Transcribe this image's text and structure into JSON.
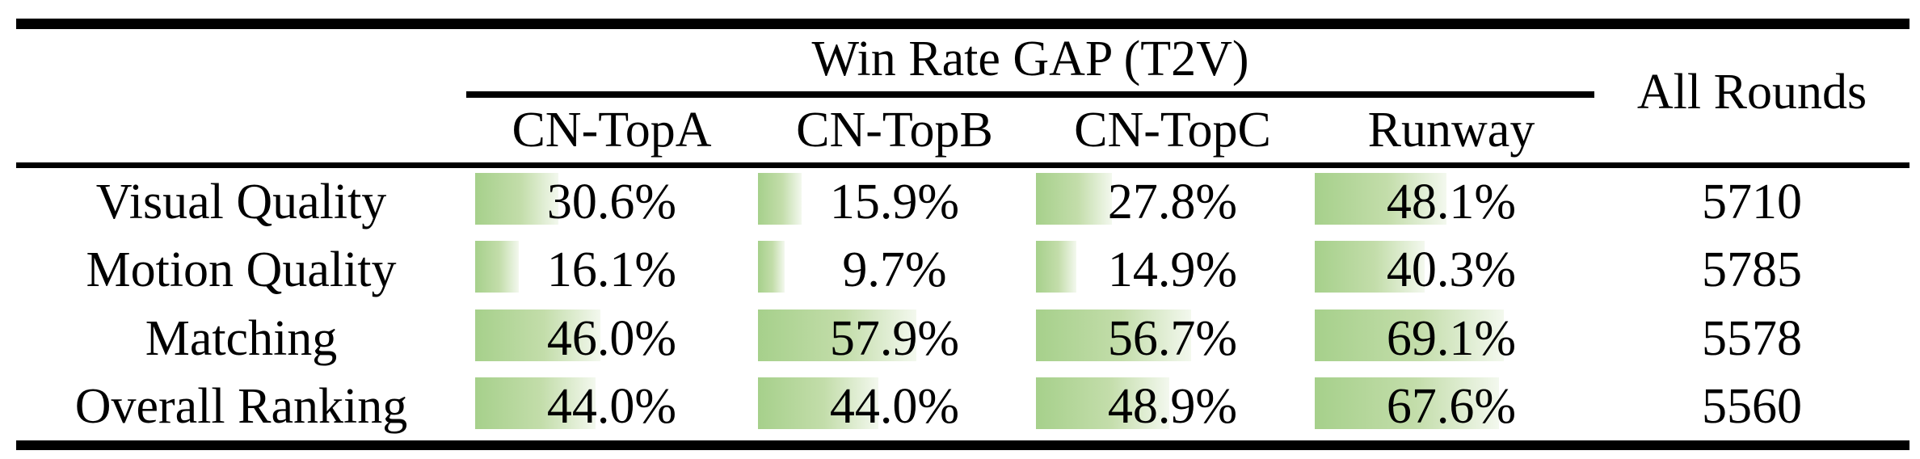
{
  "table": {
    "group_header": "Win Rate GAP (T2V)",
    "all_rounds_header": "All Rounds",
    "columns": [
      "CN-TopA",
      "CN-TopB",
      "CN-TopC",
      "Runway"
    ],
    "rows": [
      {
        "label": "Visual Quality",
        "values": [
          30.6,
          15.9,
          27.8,
          48.1
        ],
        "display": [
          "30.6%",
          "15.9%",
          "27.8%",
          "48.1%"
        ],
        "all_rounds": "5710"
      },
      {
        "label": "Motion Quality",
        "values": [
          16.1,
          9.7,
          14.9,
          40.3
        ],
        "display": [
          "16.1%",
          "9.7%",
          "14.9%",
          "40.3%"
        ],
        "all_rounds": "5785"
      },
      {
        "label": "Matching",
        "values": [
          46.0,
          57.9,
          56.7,
          69.1
        ],
        "display": [
          "46.0%",
          "57.9%",
          "56.7%",
          "69.1%"
        ],
        "all_rounds": "5578"
      },
      {
        "label": "Overall Ranking",
        "values": [
          44.0,
          44.0,
          48.9,
          67.6
        ],
        "display": [
          "44.0%",
          "44.0%",
          "48.9%",
          "67.6%"
        ],
        "all_rounds": "5560"
      }
    ]
  },
  "colors": {
    "bar_gradient_start": "#a6d08b",
    "bar_gradient_end": "#f3f8ee",
    "rule_color": "#000000",
    "text_color": "#000000"
  },
  "chart_data": {
    "type": "table",
    "title": "Win Rate GAP (T2V)",
    "categories": [
      "Visual Quality",
      "Motion Quality",
      "Matching",
      "Overall Ranking"
    ],
    "series": [
      {
        "name": "CN-TopA",
        "values": [
          30.6,
          16.1,
          46.0,
          44.0
        ]
      },
      {
        "name": "CN-TopB",
        "values": [
          15.9,
          9.7,
          57.9,
          44.0
        ]
      },
      {
        "name": "CN-TopC",
        "values": [
          27.8,
          14.9,
          56.7,
          48.9
        ]
      },
      {
        "name": "Runway",
        "values": [
          48.1,
          40.3,
          69.1,
          67.6
        ]
      }
    ],
    "extra_column": {
      "name": "All Rounds",
      "values": [
        5710,
        5785,
        5578,
        5560
      ]
    },
    "value_unit": "%",
    "bar_scale_max": 100
  }
}
